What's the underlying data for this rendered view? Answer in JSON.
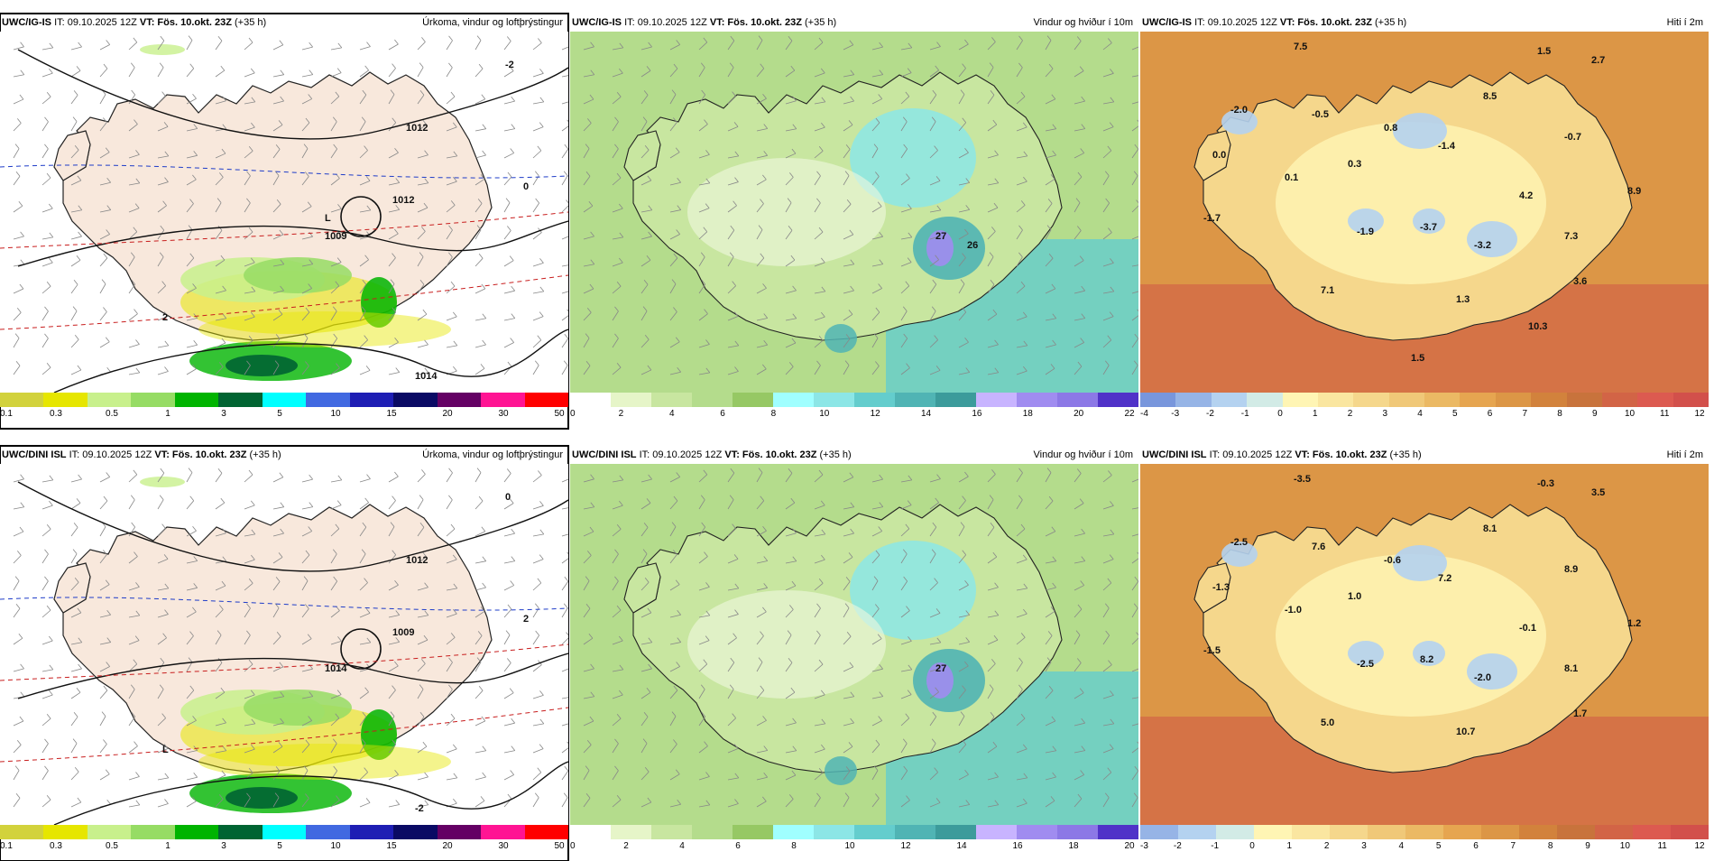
{
  "panels": [
    {
      "id": "p1",
      "model": "UWC/IG-IS",
      "it": "IT: 09.10.2025 12Z",
      "vt": "VT: Fös. 10.okt. 23Z",
      "lead": "(+35 h)",
      "title": "Úrkoma, vindur og loftþrýstingur",
      "type": "precip",
      "labels": [
        "1012",
        "1012",
        "1009",
        "1014",
        "-2",
        "0",
        "2",
        "L"
      ],
      "legend": {
        "colors": [
          "#d2d23c",
          "#e6e600",
          "#c8f08c",
          "#96dc64",
          "#00b400",
          "#006432",
          "#00ffff",
          "#4169e1",
          "#1e1eb4",
          "#0a0a64",
          "#640064",
          "#ff1493",
          "#ff0000"
        ],
        "labels": [
          "0.1",
          "0.3",
          "0.5",
          "1",
          "3",
          "5",
          "10",
          "15",
          "20",
          "30",
          "50"
        ]
      }
    },
    {
      "id": "p2",
      "model": "UWC/IG-IS",
      "it": "IT: 09.10.2025 12Z",
      "vt": "VT: Fös. 10.okt. 23Z",
      "lead": "(+35 h)",
      "title": "Vindur og hviður í 10m",
      "type": "wind",
      "labels": [
        "27",
        "26"
      ],
      "legend": {
        "colors": [
          "#ffffff",
          "#e6f5c8",
          "#c8e6a0",
          "#b4dc8c",
          "#96c864",
          "#a0ffff",
          "#8ce6e6",
          "#64cdcd",
          "#50b4b4",
          "#3c9b9b",
          "#c8b4ff",
          "#a08cf0",
          "#8c78e6",
          "#5032c8"
        ],
        "labels": [
          "0",
          "2",
          "4",
          "6",
          "8",
          "10",
          "12",
          "14",
          "16",
          "18",
          "20",
          "22"
        ]
      }
    },
    {
      "id": "p3",
      "model": "UWC/IG-IS",
      "it": "IT: 09.10.2025 12Z",
      "vt": "VT: Fös. 10.okt. 23Z",
      "lead": "(+35 h)",
      "title": "Hiti í 2m",
      "type": "temp",
      "labels": [
        "7.5",
        "1.5",
        "2.7",
        "-2.0",
        "-0.5",
        "8.5",
        "0.0",
        "0.8",
        "-1.4",
        "-0.7",
        "0.3",
        "0.1",
        "4.2",
        "8.9",
        "-1.7",
        "-1.9",
        "-3.7",
        "-3.2",
        "7.3",
        "7.1",
        "1.3",
        "3.6",
        "10.3",
        "1.5"
      ],
      "legend": {
        "colors": [
          "#7896dc",
          "#96b4e6",
          "#b4d2f0",
          "#d2ebe6",
          "#fff5b4",
          "#fae6a0",
          "#f5d78c",
          "#f0c878",
          "#ebb964",
          "#e6a550",
          "#dc9646",
          "#d2823c",
          "#c8733c",
          "#d26446",
          "#dc5a50",
          "#d2504b"
        ],
        "labels": [
          "-4",
          "-3",
          "-2",
          "-1",
          "0",
          "1",
          "2",
          "3",
          "4",
          "5",
          "6",
          "7",
          "8",
          "9",
          "10",
          "11",
          "12"
        ]
      }
    },
    {
      "id": "p4",
      "model": "UWC/DINI ISL",
      "it": "IT: 09.10.2025 12Z",
      "vt": "VT: Fös. 10.okt. 23Z",
      "lead": "(+35 h)",
      "title": "Úrkoma, vindur og loftþrýstingur",
      "type": "precip",
      "labels": [
        "1012",
        "1009",
        "1014",
        "-2",
        "0",
        "2",
        "L"
      ],
      "legend": {
        "colors": [
          "#d2d23c",
          "#e6e600",
          "#c8f08c",
          "#96dc64",
          "#00b400",
          "#006432",
          "#00ffff",
          "#4169e1",
          "#1e1eb4",
          "#0a0a64",
          "#640064",
          "#ff1493",
          "#ff0000"
        ],
        "labels": [
          "0.1",
          "0.3",
          "0.5",
          "1",
          "3",
          "5",
          "10",
          "15",
          "20",
          "30",
          "50"
        ]
      }
    },
    {
      "id": "p5",
      "model": "UWC/DINI ISL",
      "it": "IT: 09.10.2025 12Z",
      "vt": "VT: Fös. 10.okt. 23Z",
      "lead": "(+35 h)",
      "title": "Vindur og hviður í 10m",
      "type": "wind",
      "labels": [
        "27"
      ],
      "legend": {
        "colors": [
          "#ffffff",
          "#e6f5c8",
          "#c8e6a0",
          "#b4dc8c",
          "#96c864",
          "#a0ffff",
          "#8ce6e6",
          "#64cdcd",
          "#50b4b4",
          "#3c9b9b",
          "#c8b4ff",
          "#a08cf0",
          "#8c78e6",
          "#5032c8"
        ],
        "labels": [
          "0",
          "2",
          "4",
          "6",
          "8",
          "10",
          "12",
          "14",
          "16",
          "18",
          "20"
        ]
      }
    },
    {
      "id": "p6",
      "model": "UWC/DINI ISL",
      "it": "IT: 09.10.2025 12Z",
      "vt": "VT: Fös. 10.okt. 23Z",
      "lead": "(+35 h)",
      "title": "Hiti í 2m",
      "type": "temp",
      "labels": [
        "-3.5",
        "-0.3",
        "3.5",
        "-2.5",
        "7.6",
        "8.1",
        "-1.3",
        "-0.6",
        "7.2",
        "8.9",
        "1.0",
        "-1.0",
        "-0.1",
        "1.2",
        "-1.5",
        "-2.5",
        "8.2",
        "-2.0",
        "8.1",
        "5.0",
        "10.7",
        "1.7"
      ],
      "legend": {
        "colors": [
          "#96b4e6",
          "#b4d2f0",
          "#d2ebe6",
          "#fff5b4",
          "#fae6a0",
          "#f5d78c",
          "#f0c878",
          "#ebb964",
          "#e6a550",
          "#dc9646",
          "#d2823c",
          "#c8733c",
          "#d26446",
          "#dc5a50",
          "#d2504b"
        ],
        "labels": [
          "-3",
          "-2",
          "-1",
          "0",
          "1",
          "2",
          "3",
          "4",
          "5",
          "6",
          "7",
          "8",
          "9",
          "10",
          "11",
          "12"
        ]
      }
    }
  ]
}
